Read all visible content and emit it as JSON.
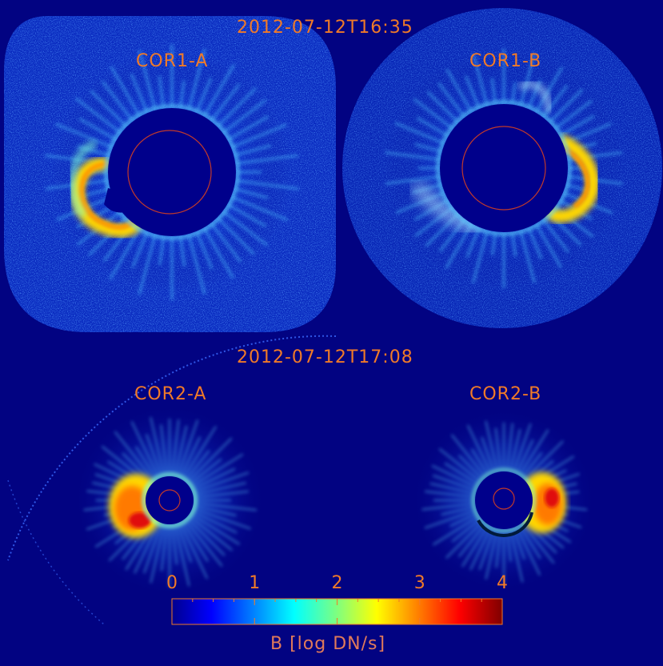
{
  "timestamps": {
    "top": "2012-07-12T16:35",
    "bottom": "2012-07-12T17:08"
  },
  "panels": [
    {
      "label": "COR1-A"
    },
    {
      "label": "COR1-B"
    },
    {
      "label": "COR2-A"
    },
    {
      "label": "COR2-B"
    }
  ],
  "colorbar": {
    "title": "B [log DN/s]",
    "ticks": [
      "0",
      "1",
      "2",
      "3",
      "4"
    ],
    "range": [
      0,
      4
    ],
    "colormap": "jet"
  },
  "colors": {
    "background": "#020382",
    "label": "#f07a28",
    "occulter": "#00008b",
    "sun_limb": "#c0392b"
  }
}
